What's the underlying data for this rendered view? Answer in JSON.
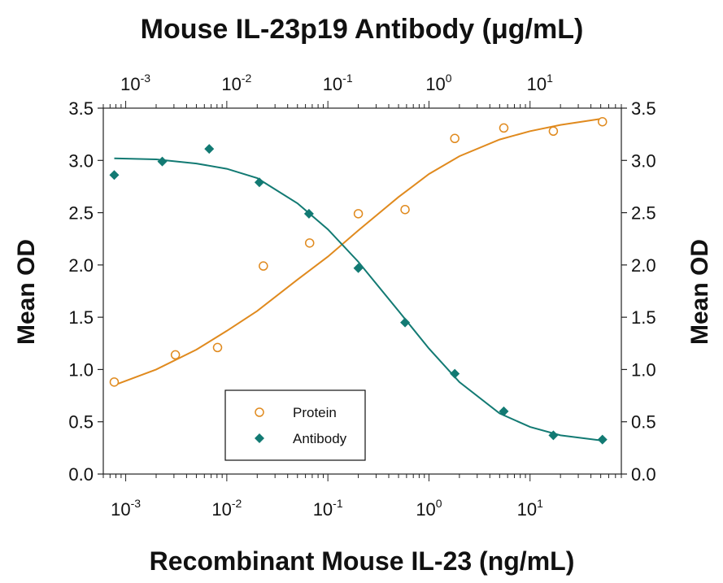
{
  "chart_data": {
    "type": "scatter",
    "title": "Mouse IL-23p19 Antibody (μg/mL)",
    "xlabel": "Recombinant Mouse IL-23 (ng/mL)",
    "ylabel": "Mean OD",
    "y2label": "Mean OD",
    "xscale": "log",
    "xlim": [
      0.0006,
      80
    ],
    "ylim": [
      0.0,
      3.5
    ],
    "x_tick_labels": [
      {
        "value": 0.001,
        "base": "10",
        "exp": "-3"
      },
      {
        "value": 0.01,
        "base": "10",
        "exp": "-2"
      },
      {
        "value": 0.1,
        "base": "10",
        "exp": "-1"
      },
      {
        "value": 1,
        "base": "10",
        "exp": "0"
      },
      {
        "value": 10,
        "base": "10",
        "exp": "1"
      }
    ],
    "top_axis": {
      "label": "Mouse IL-23p19 Antibody (μg/mL)",
      "scale": "log",
      "ticks": [
        {
          "value": 0.001,
          "base": "10",
          "exp": "-3"
        },
        {
          "value": 0.01,
          "base": "10",
          "exp": "-2"
        },
        {
          "value": 0.1,
          "base": "10",
          "exp": "-1"
        },
        {
          "value": 1,
          "base": "10",
          "exp": "0"
        },
        {
          "value": 10,
          "base": "10",
          "exp": "1"
        }
      ]
    },
    "y_ticks": [
      "0.0",
      "0.5",
      "1.0",
      "1.5",
      "2.0",
      "2.5",
      "3.0",
      "3.5"
    ],
    "legend": {
      "placement": "bottom-left",
      "entries": [
        "Protein",
        "Antibody"
      ]
    },
    "grid": false,
    "series": [
      {
        "name": "Protein",
        "color": "#e08a1e",
        "marker": "open-circle",
        "points": [
          {
            "x": 0.00077,
            "y": 0.88
          },
          {
            "x": 0.0031,
            "y": 1.14
          },
          {
            "x": 0.0081,
            "y": 1.21
          },
          {
            "x": 0.023,
            "y": 1.99
          },
          {
            "x": 0.066,
            "y": 2.21
          },
          {
            "x": 0.2,
            "y": 2.49
          },
          {
            "x": 0.58,
            "y": 2.53
          },
          {
            "x": 1.8,
            "y": 3.21
          },
          {
            "x": 5.5,
            "y": 3.31
          },
          {
            "x": 17,
            "y": 3.28
          },
          {
            "x": 52,
            "y": 3.37
          }
        ],
        "fit": [
          {
            "x": 0.00077,
            "y": 0.85
          },
          {
            "x": 0.002,
            "y": 1.0
          },
          {
            "x": 0.005,
            "y": 1.19
          },
          {
            "x": 0.01,
            "y": 1.37
          },
          {
            "x": 0.02,
            "y": 1.56
          },
          {
            "x": 0.05,
            "y": 1.86
          },
          {
            "x": 0.1,
            "y": 2.08
          },
          {
            "x": 0.2,
            "y": 2.33
          },
          {
            "x": 0.5,
            "y": 2.65
          },
          {
            "x": 1,
            "y": 2.87
          },
          {
            "x": 2,
            "y": 3.04
          },
          {
            "x": 5,
            "y": 3.2
          },
          {
            "x": 10,
            "y": 3.28
          },
          {
            "x": 20,
            "y": 3.34
          },
          {
            "x": 52,
            "y": 3.4
          }
        ]
      },
      {
        "name": "Antibody",
        "color": "#127a73",
        "marker": "filled-diamond",
        "points": [
          {
            "x": 0.00077,
            "y": 2.86
          },
          {
            "x": 0.0023,
            "y": 2.99
          },
          {
            "x": 0.0067,
            "y": 3.11
          },
          {
            "x": 0.021,
            "y": 2.79
          },
          {
            "x": 0.065,
            "y": 2.49
          },
          {
            "x": 0.2,
            "y": 1.97
          },
          {
            "x": 0.58,
            "y": 1.45
          },
          {
            "x": 1.8,
            "y": 0.96
          },
          {
            "x": 5.5,
            "y": 0.6
          },
          {
            "x": 17,
            "y": 0.37
          },
          {
            "x": 52,
            "y": 0.33
          }
        ],
        "fit": [
          {
            "x": 0.00077,
            "y": 3.02
          },
          {
            "x": 0.002,
            "y": 3.01
          },
          {
            "x": 0.005,
            "y": 2.97
          },
          {
            "x": 0.01,
            "y": 2.92
          },
          {
            "x": 0.02,
            "y": 2.83
          },
          {
            "x": 0.05,
            "y": 2.59
          },
          {
            "x": 0.1,
            "y": 2.34
          },
          {
            "x": 0.2,
            "y": 2.03
          },
          {
            "x": 0.5,
            "y": 1.56
          },
          {
            "x": 1,
            "y": 1.2
          },
          {
            "x": 2,
            "y": 0.88
          },
          {
            "x": 5,
            "y": 0.58
          },
          {
            "x": 10,
            "y": 0.45
          },
          {
            "x": 20,
            "y": 0.37
          },
          {
            "x": 52,
            "y": 0.32
          }
        ]
      }
    ]
  }
}
